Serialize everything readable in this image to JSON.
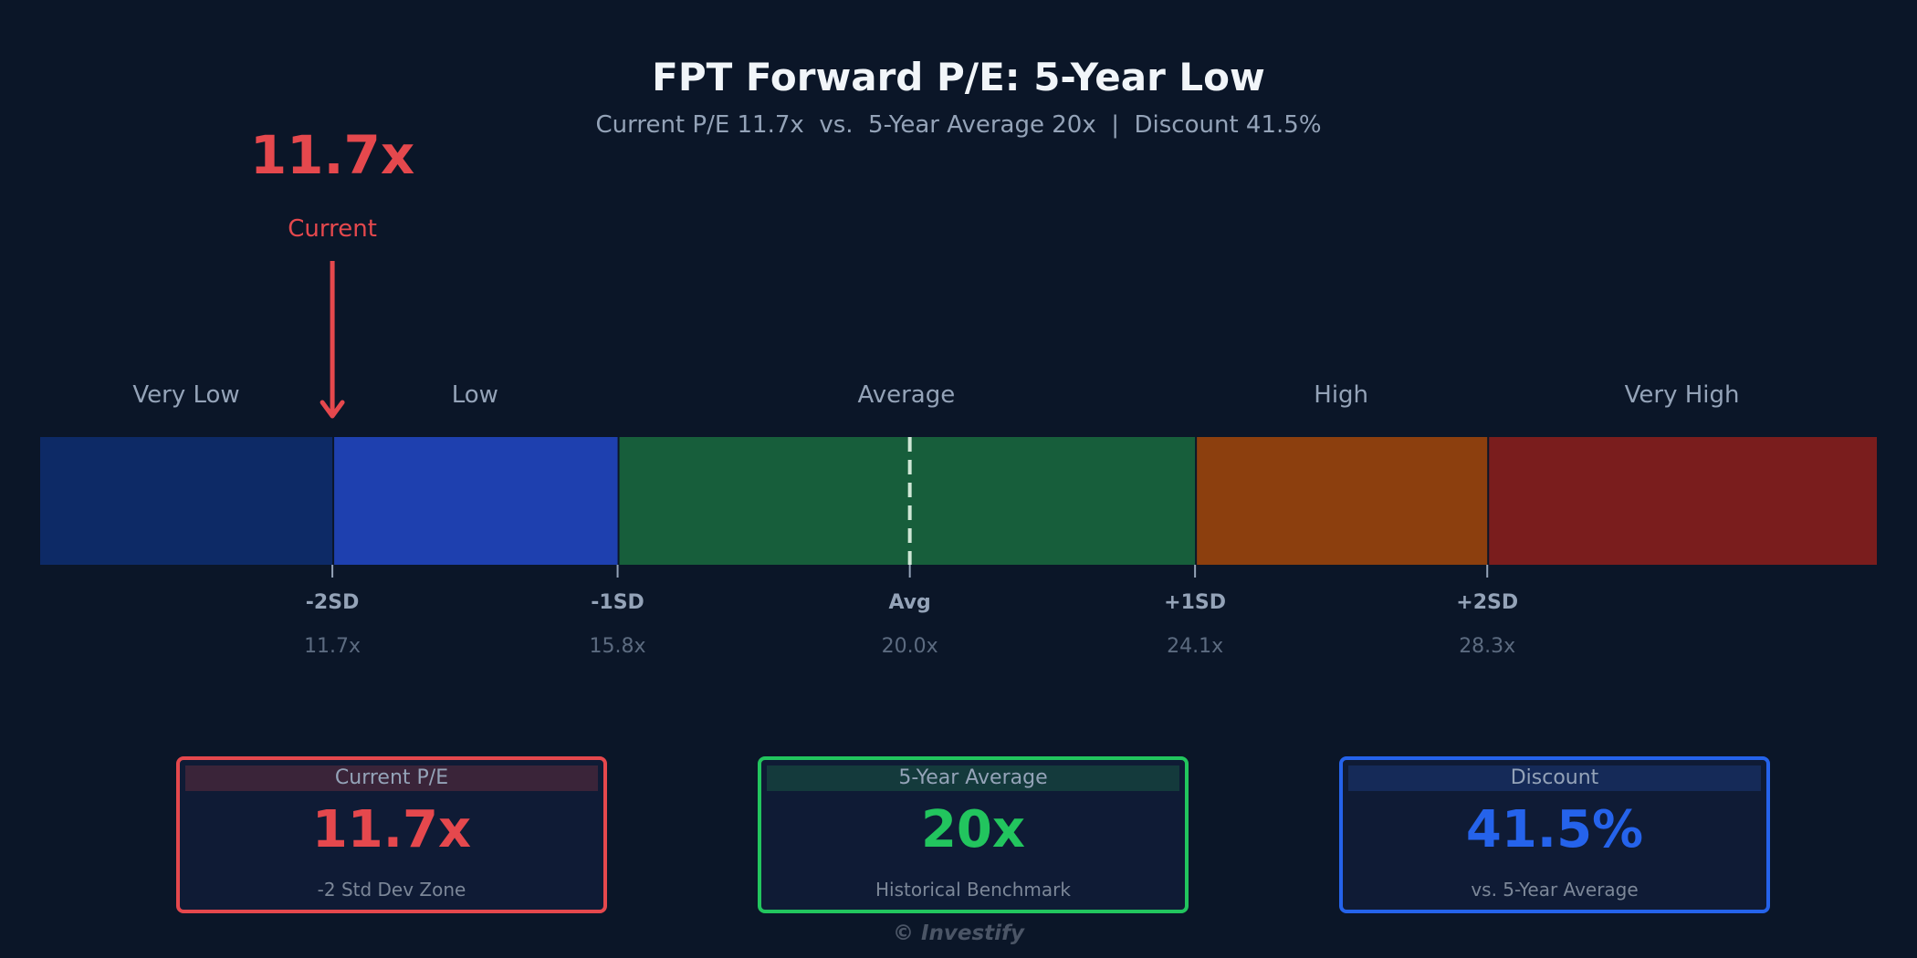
{
  "chart_data": {
    "type": "bar",
    "title": "FPT Forward P/E: 5-Year Low",
    "subtitle": "Current P/E 11.7x  vs.  5-Year Average 20x  |  Discount 41.5%",
    "zones": [
      {
        "label": "Very Low",
        "color": "#0d2a66",
        "from": 7.5,
        "to": 11.7
      },
      {
        "label": "Low",
        "color": "#1e40af",
        "from": 11.7,
        "to": 15.8
      },
      {
        "label": "Average",
        "color": "#175e3b",
        "from": 15.8,
        "to": 24.1
      },
      {
        "label": "High",
        "color": "#8c3f0e",
        "from": 24.1,
        "to": 28.3
      },
      {
        "label": "Very High",
        "color": "#7a1d1d",
        "from": 28.3,
        "to": 33.9
      }
    ],
    "ticks": [
      {
        "label": "-2SD",
        "value": 11.7,
        "value_label": "11.7x"
      },
      {
        "label": "-1SD",
        "value": 15.8,
        "value_label": "15.8x"
      },
      {
        "label": "Avg",
        "value": 20.0,
        "value_label": "20.0x"
      },
      {
        "label": "+1SD",
        "value": 24.1,
        "value_label": "24.1x"
      },
      {
        "label": "+2SD",
        "value": 28.3,
        "value_label": "28.3x"
      }
    ],
    "current": {
      "value": 11.7,
      "value_label": "11.7x",
      "label": "Current",
      "color": "#e5484d"
    },
    "average": {
      "value": 20.0
    },
    "xlim": [
      7.5,
      33.9
    ]
  },
  "cards": [
    {
      "title": "Current P/E",
      "value": "11.7x",
      "note": "-2 Std Dev Zone",
      "color": "#e5484d",
      "head_bg": "#3a2439"
    },
    {
      "title": "5-Year Average",
      "value": "20x",
      "note": "Historical Benchmark",
      "color": "#22c55e",
      "head_bg": "#143a3c"
    },
    {
      "title": "Discount",
      "value": "41.5%",
      "note": "vs. 5-Year Average",
      "color": "#2563eb",
      "head_bg": "#152a58"
    }
  ],
  "footer": "© Investify"
}
